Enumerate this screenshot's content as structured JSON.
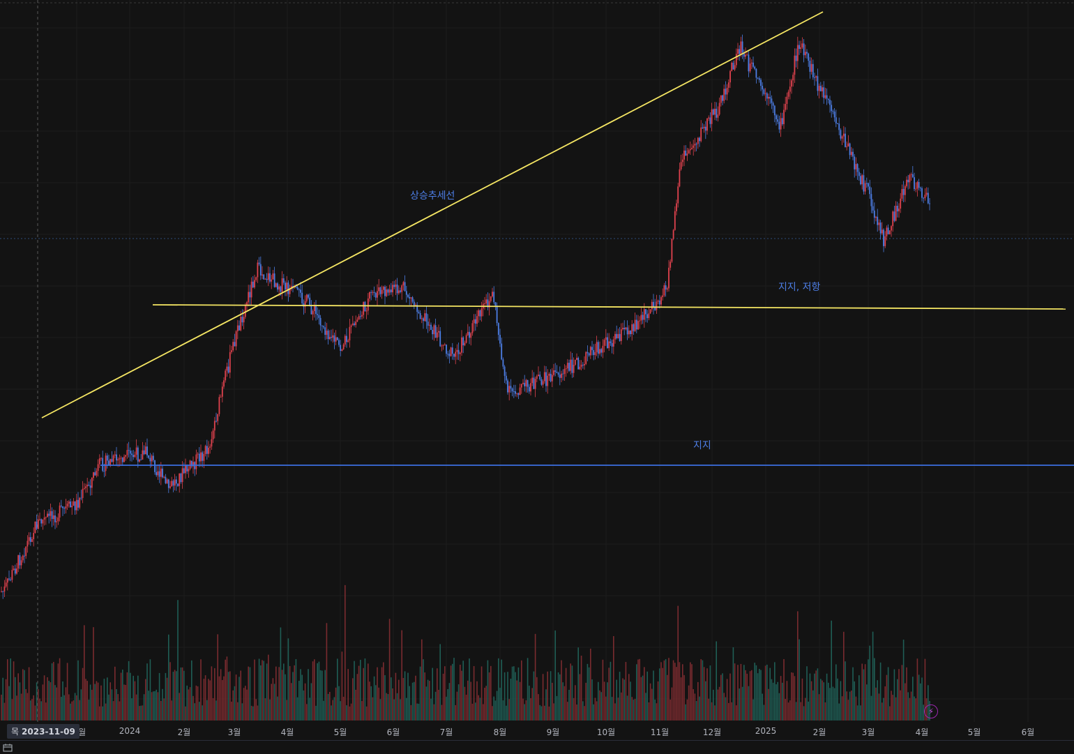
{
  "chart_data": {
    "type": "candlestick",
    "title": "",
    "x_axis_ticks": [
      "12월",
      "2024",
      "2월",
      "3월",
      "4월",
      "5월",
      "6월",
      "7월",
      "8월",
      "9월",
      "10월",
      "11월",
      "12월",
      "2025",
      "2월",
      "3월",
      "4월",
      "5월",
      "6월"
    ],
    "cursor_label": {
      "weekday": "목",
      "date": "2023-11-09"
    },
    "price_path_monthly_approx": [
      {
        "x": "2023-10-22",
        "close": 0.1
      },
      {
        "x": "2023-11-09",
        "close": 0.27
      },
      {
        "x": "2023-12-01",
        "close": 0.32
      },
      {
        "x": "2023-12-15",
        "close": 0.42
      },
      {
        "x": "2024-01-11",
        "close": 0.45
      },
      {
        "x": "2024-01-23",
        "close": 0.36
      },
      {
        "x": "2024-02-15",
        "close": 0.46
      },
      {
        "x": "2024-03-01",
        "close": 0.73
      },
      {
        "x": "2024-03-14",
        "close": 0.91
      },
      {
        "x": "2024-04-12",
        "close": 0.83
      },
      {
        "x": "2024-05-01",
        "close": 0.71
      },
      {
        "x": "2024-05-20",
        "close": 0.85
      },
      {
        "x": "2024-06-07",
        "close": 0.86
      },
      {
        "x": "2024-07-05",
        "close": 0.69
      },
      {
        "x": "2024-07-28",
        "close": 0.85
      },
      {
        "x": "2024-08-05",
        "close": 0.6
      },
      {
        "x": "2024-09-06",
        "close": 0.65
      },
      {
        "x": "2024-10-20",
        "close": 0.78
      },
      {
        "x": "2024-11-05",
        "close": 0.86
      },
      {
        "x": "2024-11-13",
        "close": 1.18
      },
      {
        "x": "2024-12-05",
        "close": 1.32
      },
      {
        "x": "2024-12-17",
        "close": 1.47
      },
      {
        "x": "2025-01-10",
        "close": 1.27
      },
      {
        "x": "2025-01-20",
        "close": 1.48
      },
      {
        "x": "2025-02-05",
        "close": 1.33
      },
      {
        "x": "2025-03-01",
        "close": 1.1
      },
      {
        "x": "2025-03-10",
        "close": 0.98
      },
      {
        "x": "2025-03-24",
        "close": 1.14
      },
      {
        "x": "2025-04-06",
        "close": 1.08
      }
    ],
    "drawings": [
      {
        "kind": "trendline",
        "color": "#f5e663",
        "label": "상승추세선"
      },
      {
        "kind": "horizontal",
        "color": "#f5e663",
        "label": "지지, 저항"
      },
      {
        "kind": "horizontal",
        "color": "#3b6fe0",
        "label": "지지"
      }
    ],
    "colors": {
      "up": "#e0424e",
      "down": "#4d7ee6",
      "background": "#131313",
      "grid": "#1c1c1c"
    },
    "volume": true,
    "grid": true
  },
  "annotations": {
    "trend_label": "상승추세선",
    "sr_label": "지지, 저항",
    "support_label": "지지"
  },
  "toolbar": {
    "flash_icon": "lightning-icon",
    "calendar_icon": "calendar-icon"
  }
}
